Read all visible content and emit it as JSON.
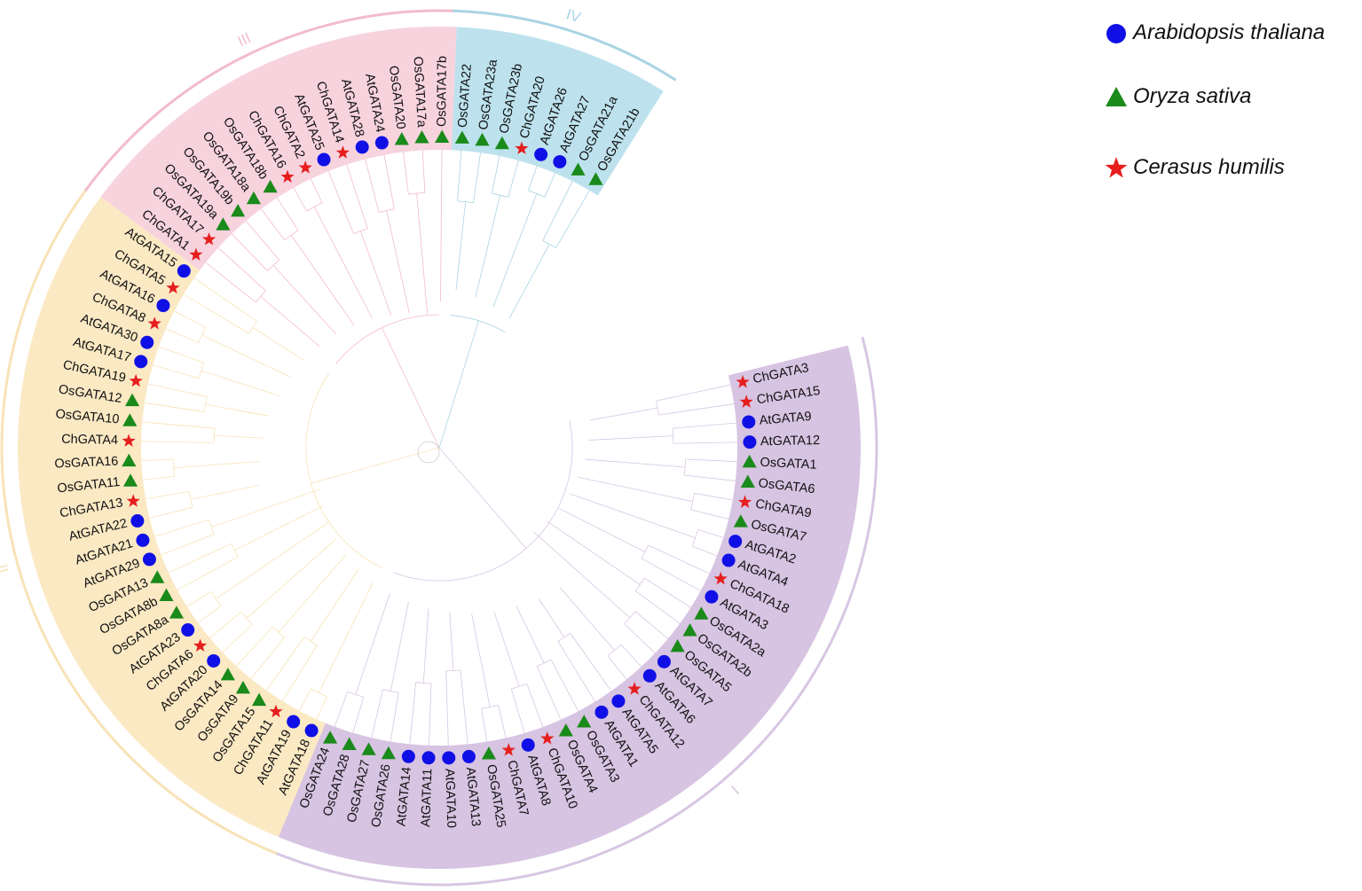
{
  "figure": {
    "description": "Circular phylogenetic tree of GATA transcription factors"
  },
  "legend": {
    "items": [
      {
        "label": "Arabidopsis thaliana",
        "species": "At",
        "marker": "circle",
        "color": "#1010e6"
      },
      {
        "label": "Oryza sativa",
        "species": "Os",
        "marker": "triangle",
        "color": "#1a8a1a"
      },
      {
        "label": "Cerasus humilis",
        "species": "Ch",
        "marker": "star",
        "color": "#e61e1e"
      }
    ]
  },
  "clades": [
    {
      "id": "I",
      "label": "I",
      "color": "#d7c3e2",
      "arc": "#d8c6e3"
    },
    {
      "id": "II",
      "label": "II",
      "color": "#fbe9c4",
      "arc": "#f8e3b7"
    },
    {
      "id": "III",
      "label": "III",
      "color": "#f7d3de",
      "arc": "#f2bccb"
    },
    {
      "id": "IV",
      "label": "IV",
      "color": "#bde2ee",
      "arc": "#a9d4e4"
    }
  ],
  "leaves": [
    {
      "name": "ChGATA3",
      "species": "Ch",
      "clade": "I"
    },
    {
      "name": "ChGATA15",
      "species": "Ch",
      "clade": "I"
    },
    {
      "name": "AtGATA9",
      "species": "At",
      "clade": "I"
    },
    {
      "name": "AtGATA12",
      "species": "At",
      "clade": "I"
    },
    {
      "name": "OsGATA1",
      "species": "Os",
      "clade": "I"
    },
    {
      "name": "OsGATA6",
      "species": "Os",
      "clade": "I"
    },
    {
      "name": "ChGATA9",
      "species": "Ch",
      "clade": "I"
    },
    {
      "name": "OsGATA7",
      "species": "Os",
      "clade": "I"
    },
    {
      "name": "AtGATA2",
      "species": "At",
      "clade": "I"
    },
    {
      "name": "AtGATA4",
      "species": "At",
      "clade": "I"
    },
    {
      "name": "ChGATA18",
      "species": "Ch",
      "clade": "I"
    },
    {
      "name": "AtGATA3",
      "species": "At",
      "clade": "I"
    },
    {
      "name": "OsGATA2a",
      "species": "Os",
      "clade": "I"
    },
    {
      "name": "OsGATA2b",
      "species": "Os",
      "clade": "I"
    },
    {
      "name": "OsGATA5",
      "species": "Os",
      "clade": "I"
    },
    {
      "name": "AtGATA7",
      "species": "At",
      "clade": "I"
    },
    {
      "name": "AtGATA6",
      "species": "At",
      "clade": "I"
    },
    {
      "name": "ChGATA12",
      "species": "Ch",
      "clade": "I"
    },
    {
      "name": "AtGATA5",
      "species": "At",
      "clade": "I"
    },
    {
      "name": "AtGATA1",
      "species": "At",
      "clade": "I"
    },
    {
      "name": "OsGATA3",
      "species": "Os",
      "clade": "I"
    },
    {
      "name": "OsGATA4",
      "species": "Os",
      "clade": "I"
    },
    {
      "name": "ChGATA10",
      "species": "Ch",
      "clade": "I"
    },
    {
      "name": "AtGATA8",
      "species": "At",
      "clade": "I"
    },
    {
      "name": "ChGATA7",
      "species": "Ch",
      "clade": "I"
    },
    {
      "name": "OsGATA25",
      "species": "Os",
      "clade": "I"
    },
    {
      "name": "AtGATA13",
      "species": "At",
      "clade": "I"
    },
    {
      "name": "AtGATA10",
      "species": "At",
      "clade": "I"
    },
    {
      "name": "AtGATA11",
      "species": "At",
      "clade": "I"
    },
    {
      "name": "AtGATA14",
      "species": "At",
      "clade": "I"
    },
    {
      "name": "OsGATA26",
      "species": "Os",
      "clade": "I"
    },
    {
      "name": "OsGATA27",
      "species": "Os",
      "clade": "I"
    },
    {
      "name": "OsGATA28",
      "species": "Os",
      "clade": "I"
    },
    {
      "name": "OsGATA24",
      "species": "Os",
      "clade": "I"
    },
    {
      "name": "AtGATA18",
      "species": "At",
      "clade": "II"
    },
    {
      "name": "AtGATA19",
      "species": "At",
      "clade": "II"
    },
    {
      "name": "ChGATA11",
      "species": "Ch",
      "clade": "II"
    },
    {
      "name": "OsGATA15",
      "species": "Os",
      "clade": "II"
    },
    {
      "name": "OsGATA9",
      "species": "Os",
      "clade": "II"
    },
    {
      "name": "OsGATA14",
      "species": "Os",
      "clade": "II"
    },
    {
      "name": "AtGATA20",
      "species": "At",
      "clade": "II"
    },
    {
      "name": "ChGATA6",
      "species": "Ch",
      "clade": "II"
    },
    {
      "name": "AtGATA23",
      "species": "At",
      "clade": "II"
    },
    {
      "name": "OsGATA8a",
      "species": "Os",
      "clade": "II"
    },
    {
      "name": "OsGATA8b",
      "species": "Os",
      "clade": "II"
    },
    {
      "name": "OsGATA13",
      "species": "Os",
      "clade": "II"
    },
    {
      "name": "AtGATA29",
      "species": "At",
      "clade": "II"
    },
    {
      "name": "AtGATA21",
      "species": "At",
      "clade": "II"
    },
    {
      "name": "AtGATA22",
      "species": "At",
      "clade": "II"
    },
    {
      "name": "ChGATA13",
      "species": "Ch",
      "clade": "II"
    },
    {
      "name": "OsGATA11",
      "species": "Os",
      "clade": "II"
    },
    {
      "name": "OsGATA16",
      "species": "Os",
      "clade": "II"
    },
    {
      "name": "ChGATA4",
      "species": "Ch",
      "clade": "II"
    },
    {
      "name": "OsGATA10",
      "species": "Os",
      "clade": "II"
    },
    {
      "name": "OsGATA12",
      "species": "Os",
      "clade": "II"
    },
    {
      "name": "ChGATA19",
      "species": "Ch",
      "clade": "II"
    },
    {
      "name": "AtGATA17",
      "species": "At",
      "clade": "II"
    },
    {
      "name": "AtGATA30",
      "species": "At",
      "clade": "II"
    },
    {
      "name": "ChGATA8",
      "species": "Ch",
      "clade": "II"
    },
    {
      "name": "AtGATA16",
      "species": "At",
      "clade": "II"
    },
    {
      "name": "ChGATA5",
      "species": "Ch",
      "clade": "II"
    },
    {
      "name": "AtGATA15",
      "species": "At",
      "clade": "II"
    },
    {
      "name": "ChGATA1",
      "species": "Ch",
      "clade": "III"
    },
    {
      "name": "ChGATA17",
      "species": "Ch",
      "clade": "III"
    },
    {
      "name": "OsGATA19a",
      "species": "Os",
      "clade": "III"
    },
    {
      "name": "OsGATA19b",
      "species": "Os",
      "clade": "III"
    },
    {
      "name": "OsGATA18a",
      "species": "Os",
      "clade": "III"
    },
    {
      "name": "OsGATA18b",
      "species": "Os",
      "clade": "III"
    },
    {
      "name": "ChGATA16",
      "species": "Ch",
      "clade": "III"
    },
    {
      "name": "ChGATA2",
      "species": "Ch",
      "clade": "III"
    },
    {
      "name": "AtGATA25",
      "species": "At",
      "clade": "III"
    },
    {
      "name": "ChGATA14",
      "species": "Ch",
      "clade": "III"
    },
    {
      "name": "AtGATA28",
      "species": "At",
      "clade": "III"
    },
    {
      "name": "AtGATA24",
      "species": "At",
      "clade": "III"
    },
    {
      "name": "OsGATA20",
      "species": "Os",
      "clade": "III"
    },
    {
      "name": "OsGATA17a",
      "species": "Os",
      "clade": "III"
    },
    {
      "name": "OsGATA17b",
      "species": "Os",
      "clade": "III"
    },
    {
      "name": "OsGATA22",
      "species": "Os",
      "clade": "IV"
    },
    {
      "name": "OsGATA23a",
      "species": "Os",
      "clade": "IV"
    },
    {
      "name": "OsGATA23b",
      "species": "Os",
      "clade": "IV"
    },
    {
      "name": "ChGATA20",
      "species": "Ch",
      "clade": "IV"
    },
    {
      "name": "AtGATA26",
      "species": "At",
      "clade": "IV"
    },
    {
      "name": "AtGATA27",
      "species": "At",
      "clade": "IV"
    },
    {
      "name": "OsGATA21a",
      "species": "Os",
      "clade": "IV"
    },
    {
      "name": "OsGATA21b",
      "species": "Os",
      "clade": "IV"
    }
  ]
}
